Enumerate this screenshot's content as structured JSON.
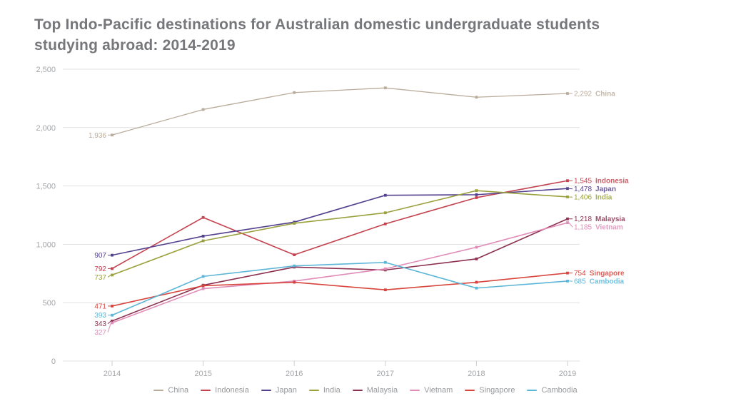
{
  "title": {
    "line1": "Top Indo-Pacific destinations for Australian domestic undergraduate students",
    "line2": "studying abroad: 2014-2019"
  },
  "chart_data": {
    "type": "line",
    "x": [
      2014,
      2015,
      2016,
      2017,
      2018,
      2019
    ],
    "x_ticks": [
      "2014",
      "2015",
      "2016",
      "2017",
      "2018",
      "2019"
    ],
    "y_ticks": [
      "0",
      "500",
      "1,000",
      "1,500",
      "2,000",
      "2,500"
    ],
    "ylim": [
      0,
      2500
    ],
    "grid": "horizontal",
    "legend_position": "bottom",
    "series": [
      {
        "name": "China",
        "color": "#b9ac9b",
        "values": [
          1936,
          2155,
          2300,
          2340,
          2260,
          2292
        ],
        "start_label": "1,936",
        "end_label": "2,292"
      },
      {
        "name": "Indonesia",
        "color": "#c4424e",
        "values": [
          792,
          1230,
          910,
          1175,
          1400,
          1545
        ],
        "start_label": "792",
        "end_label": "1,545"
      },
      {
        "name": "Japan",
        "color": "#53418e",
        "values": [
          907,
          1070,
          1190,
          1420,
          1425,
          1478
        ],
        "start_label": "907",
        "end_label": "1,478"
      },
      {
        "name": "India",
        "color": "#9aa03c",
        "values": [
          737,
          1030,
          1180,
          1270,
          1460,
          1406
        ],
        "start_label": "737",
        "end_label": "1,406"
      },
      {
        "name": "Malaysia",
        "color": "#8c3150",
        "values": [
          343,
          650,
          805,
          780,
          875,
          1218
        ],
        "start_label": "343",
        "end_label": "1,218"
      },
      {
        "name": "Vietnam",
        "color": "#e08cb8",
        "values": [
          327,
          620,
          685,
          790,
          975,
          1185
        ],
        "start_label": "327",
        "end_label": "1,185"
      },
      {
        "name": "Singapore",
        "color": "#d8453e",
        "values": [
          471,
          645,
          675,
          610,
          675,
          754
        ],
        "start_label": "471",
        "end_label": "754"
      },
      {
        "name": "Cambodia",
        "color": "#5cb6d8",
        "values": [
          393,
          725,
          815,
          845,
          625,
          685
        ],
        "start_label": "393",
        "end_label": "685"
      }
    ]
  }
}
